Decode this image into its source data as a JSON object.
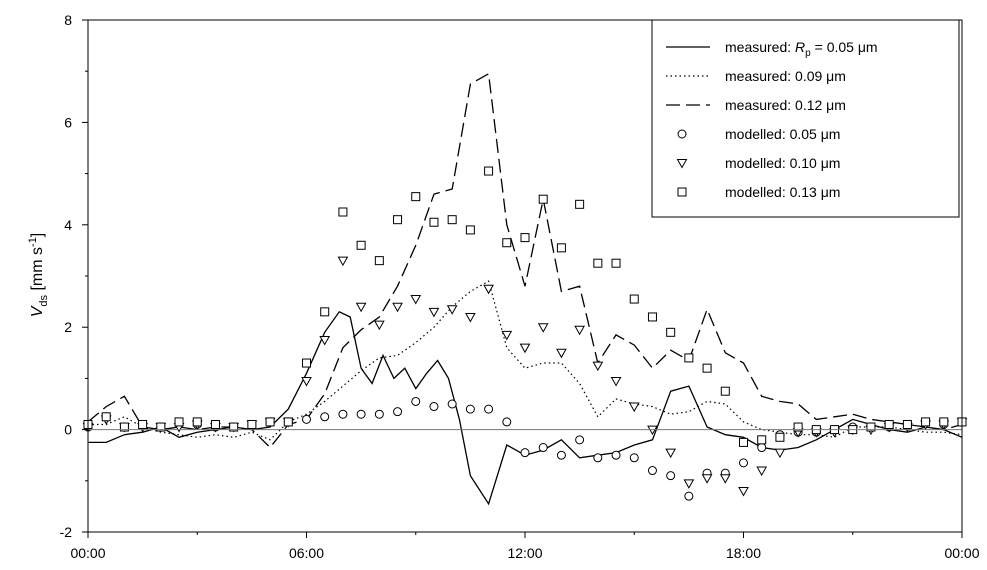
{
  "chart_data": {
    "type": "line",
    "title": "",
    "xlabel": "",
    "ylabel": "V",
    "ylabel_sub": "ds",
    "ylabel_unit": " [mm s",
    "ylabel_sup": "-1",
    "ylabel_close": "]",
    "x_unit": "hours",
    "xlim": [
      0,
      24
    ],
    "ylim": [
      -2,
      8
    ],
    "x_ticks": [
      0,
      6,
      12,
      18,
      24
    ],
    "x_tick_labels": [
      "00:00",
      "06:00",
      "12:00",
      "18:00",
      "00:00"
    ],
    "y_ticks": [
      -2,
      0,
      2,
      4,
      6,
      8
    ],
    "y_tick_labels": [
      "-2",
      "0",
      "2",
      "4",
      "6",
      "8"
    ],
    "zero_line": true,
    "grid": false,
    "legend_position": "top-right",
    "legend": [
      {
        "style": "solid",
        "parts": [
          {
            "t": "measured:  "
          },
          {
            "t": "R",
            "italic": true
          },
          {
            "t": "p",
            "sub": true
          },
          {
            "t": " = 0.05  μm"
          }
        ]
      },
      {
        "style": "dotted",
        "parts": [
          {
            "t": "measured: 0.09    μm"
          }
        ]
      },
      {
        "style": "dashed",
        "parts": [
          {
            "t": "measured: 0.12    μm"
          }
        ]
      },
      {
        "style": "circle",
        "parts": [
          {
            "t": "modelled: 0.05    μm"
          }
        ]
      },
      {
        "style": "triangle",
        "parts": [
          {
            "t": "modelled: 0.10    μm"
          }
        ]
      },
      {
        "style": "square",
        "parts": [
          {
            "t": "modelled: 0.13    μm"
          }
        ]
      }
    ],
    "series": [
      {
        "kind": "line",
        "style": "solid",
        "label": "measured: Rp = 0.05 μm",
        "x": [
          0,
          0.5,
          1,
          1.5,
          2,
          2.5,
          3,
          3.5,
          4,
          4.5,
          5,
          5.5,
          6,
          6.5,
          6.9,
          7.2,
          7.5,
          7.8,
          8.1,
          8.4,
          8.7,
          9,
          9.3,
          9.6,
          9.9,
          10.2,
          10.5,
          11,
          11.5,
          12,
          12.5,
          13,
          13.5,
          14,
          14.5,
          15,
          15.5,
          16,
          16.5,
          17,
          17.5,
          18,
          18.5,
          19,
          19.5,
          20,
          20.5,
          21,
          21.5,
          22,
          22.5,
          23,
          23.5,
          24
        ],
        "y": [
          -0.25,
          -0.25,
          -0.1,
          -0.05,
          0.05,
          -0.15,
          -0.05,
          0.0,
          0.05,
          0.0,
          0.05,
          0.4,
          1.1,
          1.9,
          2.3,
          2.2,
          1.2,
          0.9,
          1.45,
          1.0,
          1.2,
          0.8,
          1.1,
          1.35,
          1.0,
          0.2,
          -0.9,
          -1.45,
          -0.3,
          -0.5,
          -0.4,
          -0.2,
          -0.55,
          -0.5,
          -0.45,
          -0.3,
          -0.2,
          0.75,
          0.85,
          0.05,
          -0.1,
          -0.15,
          -0.35,
          -0.4,
          -0.35,
          -0.2,
          0.0,
          0.2,
          0.1,
          0.0,
          -0.05,
          0.05,
          0.0,
          -0.15
        ]
      },
      {
        "kind": "line",
        "style": "dotted",
        "label": "measured: 0.09 μm",
        "x": [
          0,
          0.5,
          1,
          1.5,
          2,
          2.5,
          3,
          3.5,
          4,
          4.5,
          5,
          5.5,
          6,
          6.5,
          7,
          7.5,
          8,
          8.5,
          9,
          9.5,
          10,
          10.5,
          11,
          11.5,
          12,
          12.5,
          13,
          13.5,
          14,
          14.5,
          15,
          15.5,
          16,
          16.5,
          17,
          17.5,
          18,
          18.5,
          19,
          19.5,
          20,
          20.5,
          21,
          21.5,
          22,
          22.5,
          23,
          23.5,
          24
        ],
        "y": [
          0.1,
          0.1,
          0.25,
          0.05,
          -0.05,
          -0.1,
          -0.15,
          -0.1,
          -0.15,
          -0.05,
          -0.2,
          0.15,
          0.3,
          0.55,
          0.85,
          1.15,
          1.4,
          1.45,
          1.7,
          2.0,
          2.4,
          2.7,
          2.9,
          1.6,
          1.2,
          1.3,
          1.3,
          0.9,
          0.25,
          0.6,
          0.5,
          0.45,
          0.3,
          0.35,
          0.55,
          0.5,
          0.15,
          0.0,
          -0.05,
          -0.1,
          -0.1,
          -0.15,
          0.05,
          0.05,
          0.05,
          0.0,
          -0.05,
          -0.05,
          -0.1
        ]
      },
      {
        "kind": "line",
        "style": "dashed",
        "label": "measured: 0.12 μm",
        "x": [
          0,
          0.5,
          1,
          1.5,
          2,
          2.5,
          3,
          3.5,
          4,
          4.5,
          5,
          5.5,
          6,
          6.5,
          7,
          7.5,
          8,
          8.5,
          9,
          9.5,
          10,
          10.5,
          11,
          11.5,
          12,
          12.5,
          13,
          13.5,
          14,
          14.5,
          15,
          15.5,
          16,
          16.5,
          17,
          17.5,
          18,
          18.5,
          19,
          19.5,
          20,
          20.5,
          21,
          21.5,
          22,
          22.5,
          23,
          23.5,
          24
        ],
        "y": [
          0.15,
          0.45,
          0.65,
          0.05,
          0.0,
          0.05,
          0.0,
          0.05,
          0.05,
          0.0,
          -0.35,
          0.1,
          0.2,
          0.7,
          1.6,
          1.95,
          2.2,
          2.8,
          3.6,
          4.6,
          4.7,
          6.75,
          6.95,
          4.0,
          2.8,
          4.5,
          2.7,
          2.8,
          1.3,
          1.85,
          1.65,
          1.2,
          1.55,
          1.35,
          2.35,
          1.5,
          1.3,
          0.65,
          0.55,
          0.5,
          0.2,
          0.25,
          0.3,
          0.2,
          0.15,
          0.1,
          0.05,
          0.0,
          0.1
        ]
      },
      {
        "kind": "points",
        "marker": "circle",
        "label": "modelled: 0.05 μm",
        "x": [
          0,
          0.5,
          1,
          1.5,
          2,
          2.5,
          3,
          3.5,
          4,
          4.5,
          5,
          5.5,
          6,
          6.5,
          7,
          7.5,
          8,
          8.5,
          9,
          9.5,
          10,
          10.5,
          11,
          11.5,
          12,
          12.5,
          13,
          13.5,
          14,
          14.5,
          15,
          15.5,
          16,
          16.5,
          17,
          17.5,
          18,
          18.5,
          19,
          19.5,
          20,
          20.5,
          21,
          21.5,
          22,
          22.5,
          23,
          23.5,
          24
        ],
        "y": [
          0.05,
          0.25,
          0.05,
          0.1,
          0.05,
          0.1,
          0.1,
          0.05,
          0.05,
          0.1,
          0.15,
          0.15,
          0.2,
          0.25,
          0.3,
          0.3,
          0.3,
          0.35,
          0.55,
          0.45,
          0.5,
          0.4,
          0.4,
          0.15,
          -0.45,
          -0.35,
          -0.5,
          -0.2,
          -0.55,
          -0.5,
          -0.55,
          -0.8,
          -0.9,
          -1.3,
          -0.85,
          -0.85,
          -0.65,
          -0.35,
          -0.1,
          -0.05,
          -0.05,
          0.0,
          0.05,
          0.05,
          0.05,
          0.1,
          0.15,
          0.1,
          0.15
        ]
      },
      {
        "kind": "points",
        "marker": "triangle",
        "label": "modelled: 0.10 μm",
        "x": [
          0,
          0.5,
          1,
          1.5,
          2,
          2.5,
          3,
          3.5,
          4,
          4.5,
          5,
          5.5,
          6,
          6.5,
          7,
          7.5,
          8,
          8.5,
          9,
          9.5,
          10,
          10.5,
          11,
          11.5,
          12,
          12.5,
          13,
          13.5,
          14,
          14.5,
          15,
          15.5,
          16,
          16.5,
          17,
          17.5,
          18,
          18.5,
          19,
          19.5,
          20,
          20.5,
          21,
          21.5,
          22,
          22.5,
          23,
          23.5,
          24
        ],
        "y": [
          0.05,
          0.2,
          0.05,
          0.05,
          0.05,
          0.05,
          0.1,
          0.05,
          0.05,
          0.1,
          0.15,
          0.15,
          0.95,
          1.75,
          3.3,
          2.4,
          2.05,
          2.4,
          2.55,
          2.3,
          2.35,
          2.2,
          2.75,
          1.85,
          1.6,
          2.0,
          1.5,
          1.95,
          1.25,
          0.95,
          0.45,
          0.0,
          -0.45,
          -1.05,
          -0.95,
          -0.95,
          -1.2,
          -0.8,
          -0.45,
          -0.05,
          -0.05,
          -0.05,
          0.0,
          0.0,
          0.05,
          0.05,
          0.1,
          0.1,
          0.15
        ]
      },
      {
        "kind": "points",
        "marker": "square",
        "label": "modelled: 0.13 μm",
        "x": [
          0,
          0.5,
          1,
          1.5,
          2,
          2.5,
          3,
          3.5,
          4,
          4.5,
          5,
          5.5,
          6,
          6.5,
          7,
          7.5,
          8,
          8.5,
          9,
          9.5,
          10,
          10.5,
          11,
          11.5,
          12,
          12.5,
          13,
          13.5,
          14,
          14.5,
          15,
          15.5,
          16,
          16.5,
          17,
          17.5,
          18,
          18.5,
          19,
          19.5,
          20,
          20.5,
          21,
          21.5,
          22,
          22.5,
          23,
          23.5,
          24
        ],
        "y": [
          0.1,
          0.25,
          0.05,
          0.1,
          0.05,
          0.15,
          0.15,
          0.1,
          0.05,
          0.1,
          0.15,
          0.15,
          1.3,
          2.3,
          4.25,
          3.6,
          3.3,
          4.1,
          4.55,
          4.05,
          4.1,
          3.9,
          5.05,
          3.65,
          3.75,
          4.5,
          3.55,
          4.4,
          3.25,
          3.25,
          2.55,
          2.2,
          1.9,
          1.4,
          1.2,
          0.75,
          -0.25,
          -0.2,
          -0.15,
          0.05,
          0.0,
          0.0,
          0.0,
          0.05,
          0.1,
          0.1,
          0.15,
          0.15,
          0.15
        ]
      }
    ]
  }
}
